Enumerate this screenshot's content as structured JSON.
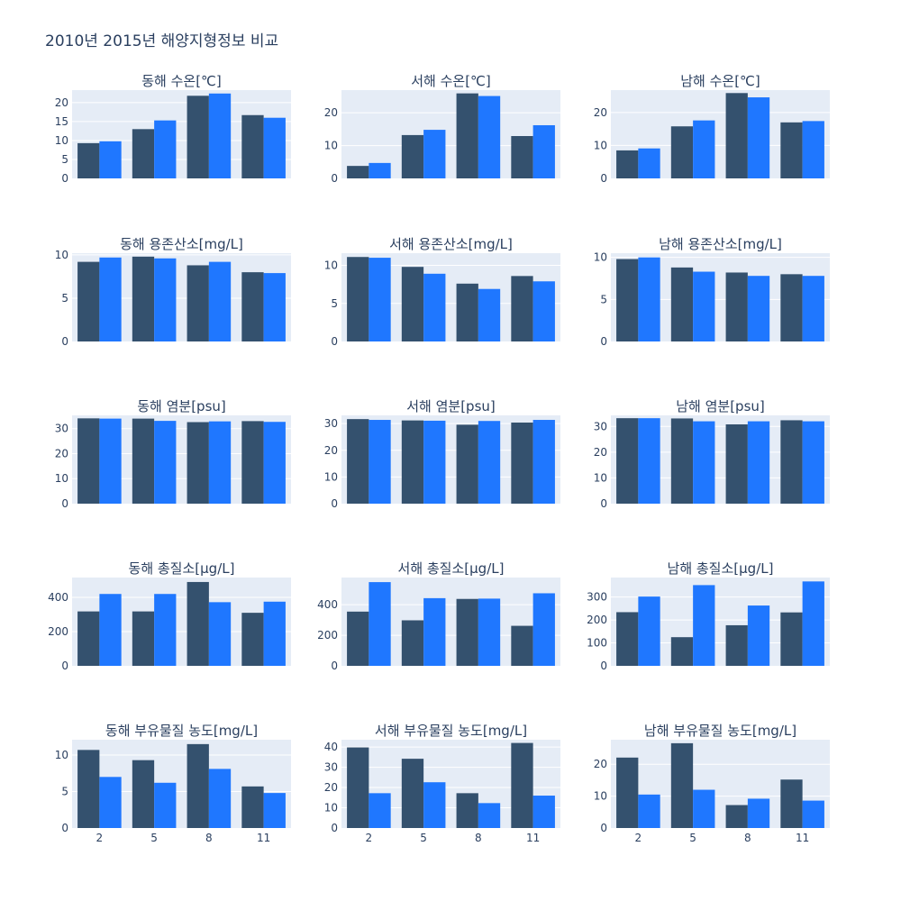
{
  "title": "2010년 2015년 해양지형정보 비교",
  "colors": {
    "series_2010": "#34516e",
    "series_2015": "#1f77ff",
    "plot_bg": "#e5ecf6",
    "grid": "#ffffff",
    "text": "#2a3f5f"
  },
  "chart_data": [
    {
      "type": "bar",
      "title": "동해 수온[℃]",
      "categories": [
        "2",
        "5",
        "8",
        "11"
      ],
      "yticks": [
        0,
        5,
        10,
        15,
        20
      ],
      "ylim": [
        0,
        23.3
      ],
      "series": [
        {
          "values": [
            9.3,
            13.0,
            21.8,
            16.7
          ]
        },
        {
          "values": [
            9.8,
            15.3,
            22.4,
            16.0
          ]
        }
      ]
    },
    {
      "type": "bar",
      "title": "서해 수온[℃]",
      "categories": [
        "2",
        "5",
        "8",
        "11"
      ],
      "yticks": [
        0,
        10,
        20
      ],
      "ylim": [
        0,
        26.9
      ],
      "series": [
        {
          "values": [
            3.8,
            13.2,
            25.9,
            12.9
          ]
        },
        {
          "values": [
            4.7,
            14.8,
            25.1,
            16.2
          ]
        }
      ]
    },
    {
      "type": "bar",
      "title": "남해 수온[℃]",
      "categories": [
        "2",
        "5",
        "8",
        "11"
      ],
      "yticks": [
        0,
        10,
        20
      ],
      "ylim": [
        0,
        26.8
      ],
      "series": [
        {
          "values": [
            8.5,
            15.8,
            25.9,
            17.0
          ]
        },
        {
          "values": [
            9.1,
            17.6,
            24.6,
            17.4
          ]
        }
      ]
    },
    {
      "type": "bar",
      "title": "동해 용존산소[mg/L]",
      "categories": [
        "2",
        "5",
        "8",
        "11"
      ],
      "yticks": [
        0,
        5,
        10
      ],
      "ylim": [
        0,
        10.2
      ],
      "series": [
        {
          "values": [
            9.2,
            9.8,
            8.8,
            8.0
          ]
        },
        {
          "values": [
            9.7,
            9.6,
            9.2,
            7.9
          ]
        }
      ]
    },
    {
      "type": "bar",
      "title": "서해 용존산소[mg/L]",
      "categories": [
        "2",
        "5",
        "8",
        "11"
      ],
      "yticks": [
        0,
        5,
        10
      ],
      "ylim": [
        0,
        11.6
      ],
      "series": [
        {
          "values": [
            11.1,
            9.8,
            7.6,
            8.6
          ]
        },
        {
          "values": [
            11.0,
            8.9,
            6.9,
            7.9
          ]
        }
      ]
    },
    {
      "type": "bar",
      "title": "남해 용존산소[mg/L]",
      "categories": [
        "2",
        "5",
        "8",
        "11"
      ],
      "yticks": [
        0,
        5,
        10
      ],
      "ylim": [
        0,
        10.5
      ],
      "series": [
        {
          "values": [
            9.8,
            8.8,
            8.2,
            8.0
          ]
        },
        {
          "values": [
            10.0,
            8.3,
            7.8,
            7.8
          ]
        }
      ]
    },
    {
      "type": "bar",
      "title": "동해 염분[psu]",
      "categories": [
        "2",
        "5",
        "8",
        "11"
      ],
      "yticks": [
        0,
        10,
        20,
        30
      ],
      "ylim": [
        0,
        35.3
      ],
      "series": [
        {
          "values": [
            34.1,
            34.0,
            32.6,
            33.0
          ]
        },
        {
          "values": [
            34.0,
            33.1,
            32.9,
            32.7
          ]
        }
      ]
    },
    {
      "type": "bar",
      "title": "서해 염분[psu]",
      "categories": [
        "2",
        "5",
        "8",
        "11"
      ],
      "yticks": [
        0,
        10,
        20,
        30
      ],
      "ylim": [
        0,
        33.1
      ],
      "series": [
        {
          "values": [
            31.7,
            31.2,
            29.6,
            30.4
          ]
        },
        {
          "values": [
            31.4,
            31.1,
            31.0,
            31.4
          ]
        }
      ]
    },
    {
      "type": "bar",
      "title": "남해 염분[psu]",
      "categories": [
        "2",
        "5",
        "8",
        "11"
      ],
      "yticks": [
        0,
        10,
        20,
        30
      ],
      "ylim": [
        0,
        34.3
      ],
      "series": [
        {
          "values": [
            33.2,
            33.1,
            30.8,
            32.4
          ]
        },
        {
          "values": [
            33.2,
            32.0,
            32.0,
            32.0
          ]
        }
      ]
    },
    {
      "type": "bar",
      "title": "동해 총질소[μg/L]",
      "categories": [
        "2",
        "5",
        "8",
        "11"
      ],
      "yticks": [
        0,
        200,
        400
      ],
      "ylim": [
        0,
        516
      ],
      "series": [
        {
          "values": [
            318,
            318,
            490,
            310
          ]
        },
        {
          "values": [
            420,
            420,
            372,
            375
          ]
        }
      ]
    },
    {
      "type": "bar",
      "title": "서해 총질소[μg/L]",
      "categories": [
        "2",
        "5",
        "8",
        "11"
      ],
      "yticks": [
        0,
        200,
        400
      ],
      "ylim": [
        0,
        578
      ],
      "series": [
        {
          "values": [
            355,
            298,
            438,
            262
          ]
        },
        {
          "values": [
            548,
            443,
            440,
            475
          ]
        }
      ]
    },
    {
      "type": "bar",
      "title": "남해 총질소[μg/L]",
      "categories": [
        "2",
        "5",
        "8",
        "11"
      ],
      "yticks": [
        0,
        100,
        200,
        300
      ],
      "ylim": [
        0,
        385
      ],
      "series": [
        {
          "values": [
            234,
            125,
            177,
            233
          ]
        },
        {
          "values": [
            302,
            352,
            263,
            368
          ]
        }
      ]
    },
    {
      "type": "bar",
      "title": "동해 부유물질 농도[mg/L]",
      "categories": [
        "2",
        "5",
        "8",
        "11"
      ],
      "yticks": [
        0,
        5,
        10
      ],
      "ylim": [
        0,
        12.1
      ],
      "series": [
        {
          "values": [
            10.7,
            9.3,
            11.5,
            5.7
          ]
        },
        {
          "values": [
            7.0,
            6.2,
            8.1,
            4.8
          ]
        }
      ]
    },
    {
      "type": "bar",
      "title": "서해 부유물질 농도[mg/L]",
      "categories": [
        "2",
        "5",
        "8",
        "11"
      ],
      "yticks": [
        0,
        10,
        20,
        30,
        40
      ],
      "ylim": [
        0,
        43.6
      ],
      "series": [
        {
          "values": [
            39.8,
            34.2,
            17.2,
            42.0
          ]
        },
        {
          "values": [
            17.2,
            22.6,
            12.3,
            16.0
          ]
        }
      ]
    },
    {
      "type": "bar",
      "title": "남해 부유물질 농도[mg/L]",
      "categories": [
        "2",
        "5",
        "8",
        "11"
      ],
      "yticks": [
        0,
        10,
        20
      ],
      "ylim": [
        0,
        27.7
      ],
      "series": [
        {
          "values": [
            22.1,
            26.6,
            7.2,
            15.2
          ]
        },
        {
          "values": [
            10.5,
            12.0,
            9.2,
            8.6
          ]
        }
      ]
    }
  ]
}
